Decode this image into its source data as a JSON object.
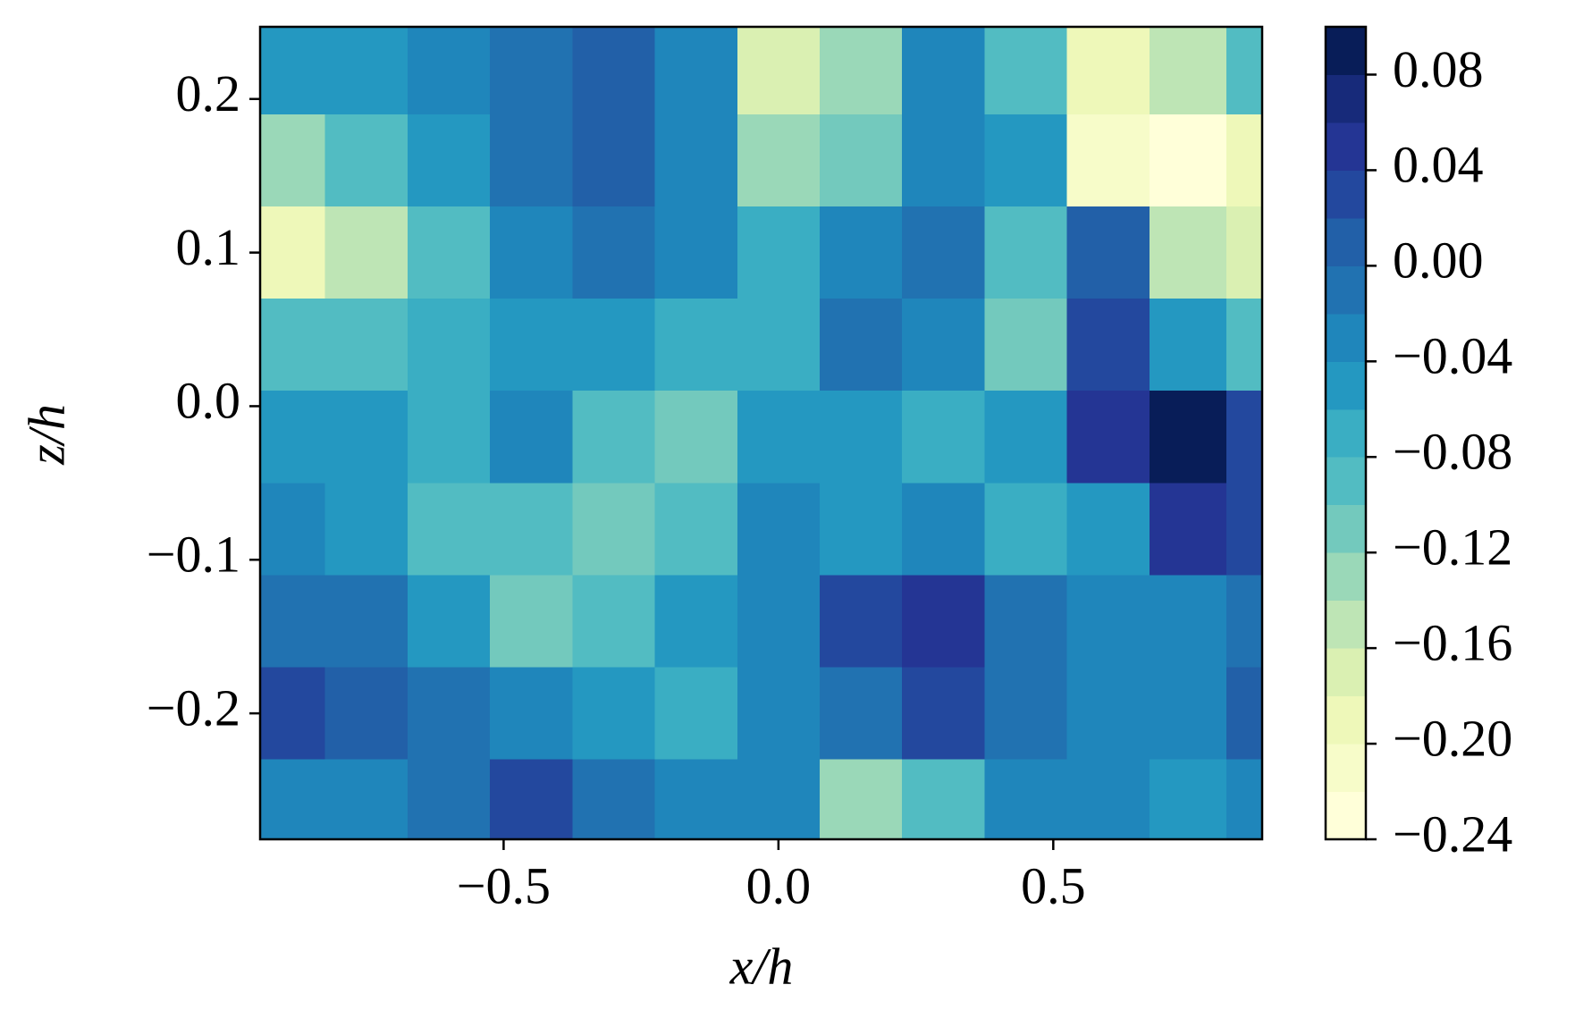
{
  "chart_data": {
    "type": "contour",
    "x_label": "x/h",
    "y_label": "z/h",
    "x": [
      -0.9,
      -0.75,
      -0.6,
      -0.45,
      -0.3,
      -0.15,
      0,
      0.15,
      0.3,
      0.45,
      0.6,
      0.75,
      0.88
    ],
    "y": [
      0.22,
      0.16,
      0.1,
      0.04,
      -0.02,
      -0.08,
      -0.14,
      -0.2,
      -0.26
    ],
    "z": [
      [
        -0.06,
        -0.06,
        -0.04,
        -0.02,
        0.0,
        -0.04,
        -0.18,
        -0.14,
        -0.04,
        -0.1,
        -0.2,
        -0.16,
        -0.1
      ],
      [
        -0.14,
        -0.1,
        -0.06,
        -0.02,
        0.0,
        -0.04,
        -0.14,
        -0.12,
        -0.04,
        -0.06,
        -0.22,
        -0.24,
        -0.2
      ],
      [
        -0.2,
        -0.16,
        -0.1,
        -0.04,
        -0.02,
        -0.04,
        -0.08,
        -0.04,
        -0.02,
        -0.1,
        0.0,
        -0.16,
        -0.18
      ],
      [
        -0.1,
        -0.1,
        -0.08,
        -0.06,
        -0.06,
        -0.08,
        -0.08,
        -0.02,
        -0.04,
        -0.12,
        0.02,
        -0.06,
        -0.1
      ],
      [
        -0.06,
        -0.06,
        -0.08,
        -0.04,
        -0.1,
        -0.12,
        -0.06,
        -0.06,
        -0.08,
        -0.06,
        0.04,
        0.08,
        0.02
      ],
      [
        -0.04,
        -0.06,
        -0.1,
        -0.1,
        -0.12,
        -0.1,
        -0.04,
        -0.06,
        -0.04,
        -0.08,
        -0.06,
        0.04,
        0.02
      ],
      [
        -0.02,
        -0.02,
        -0.06,
        -0.12,
        -0.1,
        -0.06,
        -0.04,
        0.02,
        0.04,
        -0.02,
        -0.04,
        -0.04,
        -0.02
      ],
      [
        0.02,
        0.0,
        -0.02,
        -0.04,
        -0.06,
        -0.08,
        -0.04,
        -0.02,
        0.02,
        -0.02,
        -0.04,
        -0.04,
        0.0
      ],
      [
        -0.04,
        -0.04,
        -0.02,
        0.02,
        -0.02,
        -0.04,
        -0.04,
        -0.14,
        -0.1,
        -0.04,
        -0.04,
        -0.06,
        -0.04
      ]
    ],
    "xlim": [
      -0.943,
      0.88
    ],
    "ylim": [
      -0.282,
      0.247
    ],
    "xticks": [
      {
        "value": -0.5,
        "label": "−0.5"
      },
      {
        "value": 0,
        "label": "0.0"
      },
      0.5
    ],
    "yticks": [
      {
        "value": -0.2,
        "label": "−0.2"
      },
      {
        "value": -0.1,
        "label": "−0.1"
      },
      {
        "value": 0,
        "label": "0.0"
      },
      0.1,
      0.2
    ],
    "levels": [
      -0.24,
      -0.22,
      -0.2,
      -0.18,
      -0.16,
      -0.14,
      -0.12,
      -0.1,
      -0.08,
      -0.06,
      -0.04,
      -0.02,
      0,
      0.02,
      0.04,
      0.06,
      0.08,
      0.1
    ],
    "colors": [
      "#ffffd9",
      "#f7fcc9",
      "#eef8b9",
      "#daf0b2",
      "#bee5b5",
      "#9ad8b8",
      "#73c9bd",
      "#52bcc2",
      "#3aaec3",
      "#2498c1",
      "#1f86bb",
      "#2172b1",
      "#2260a8",
      "#23489e",
      "#243594",
      "#172a7a",
      "#081d58"
    ],
    "colorbar_ticks": [
      {
        "value": -0.24,
        "label": "−0.24"
      },
      {
        "value": -0.2,
        "label": "−0.20"
      },
      {
        "value": -0.16,
        "label": "−0.16"
      },
      {
        "value": -0.12,
        "label": "−0.12"
      },
      {
        "value": -0.08,
        "label": "−0.08"
      },
      {
        "value": -0.04,
        "label": "−0.04"
      },
      {
        "value": 0,
        "label": "0.00"
      },
      0.04,
      0.08
    ]
  }
}
